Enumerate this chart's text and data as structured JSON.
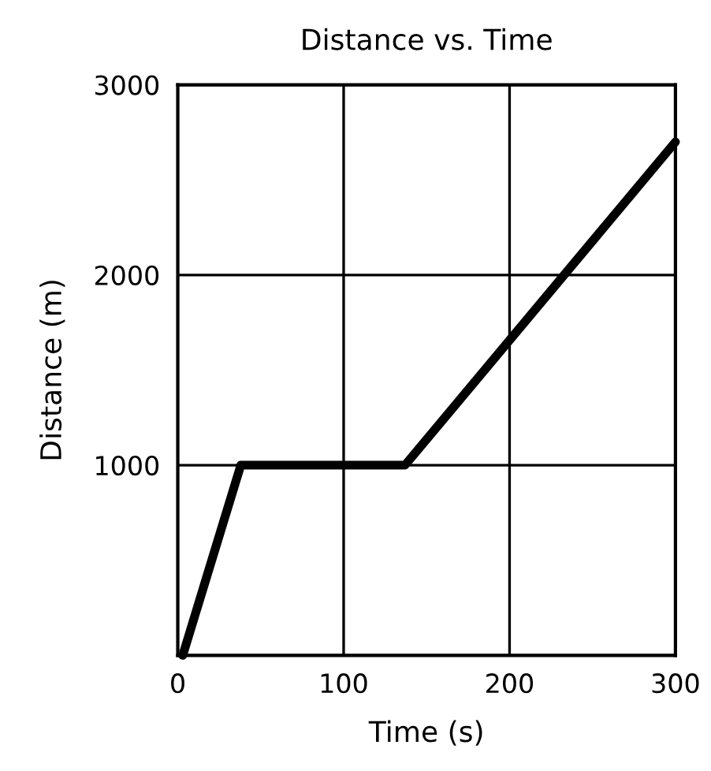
{
  "chart_data": {
    "type": "line",
    "title": "Distance vs. Time",
    "xlabel": "Time (s)",
    "ylabel": "Distance (m)",
    "x": [
      3,
      38,
      137,
      300
    ],
    "values": [
      0,
      1000,
      1000,
      2700
    ],
    "color": "#000000",
    "xlim": [
      0,
      300
    ],
    "ylim": [
      0,
      3000
    ],
    "xticks": [
      0,
      100,
      200,
      300
    ],
    "yticks": [
      {
        "value": 0,
        "label": null
      },
      1000,
      2000,
      3000
    ],
    "grid": true,
    "marker": "none",
    "line_style": "solid"
  }
}
